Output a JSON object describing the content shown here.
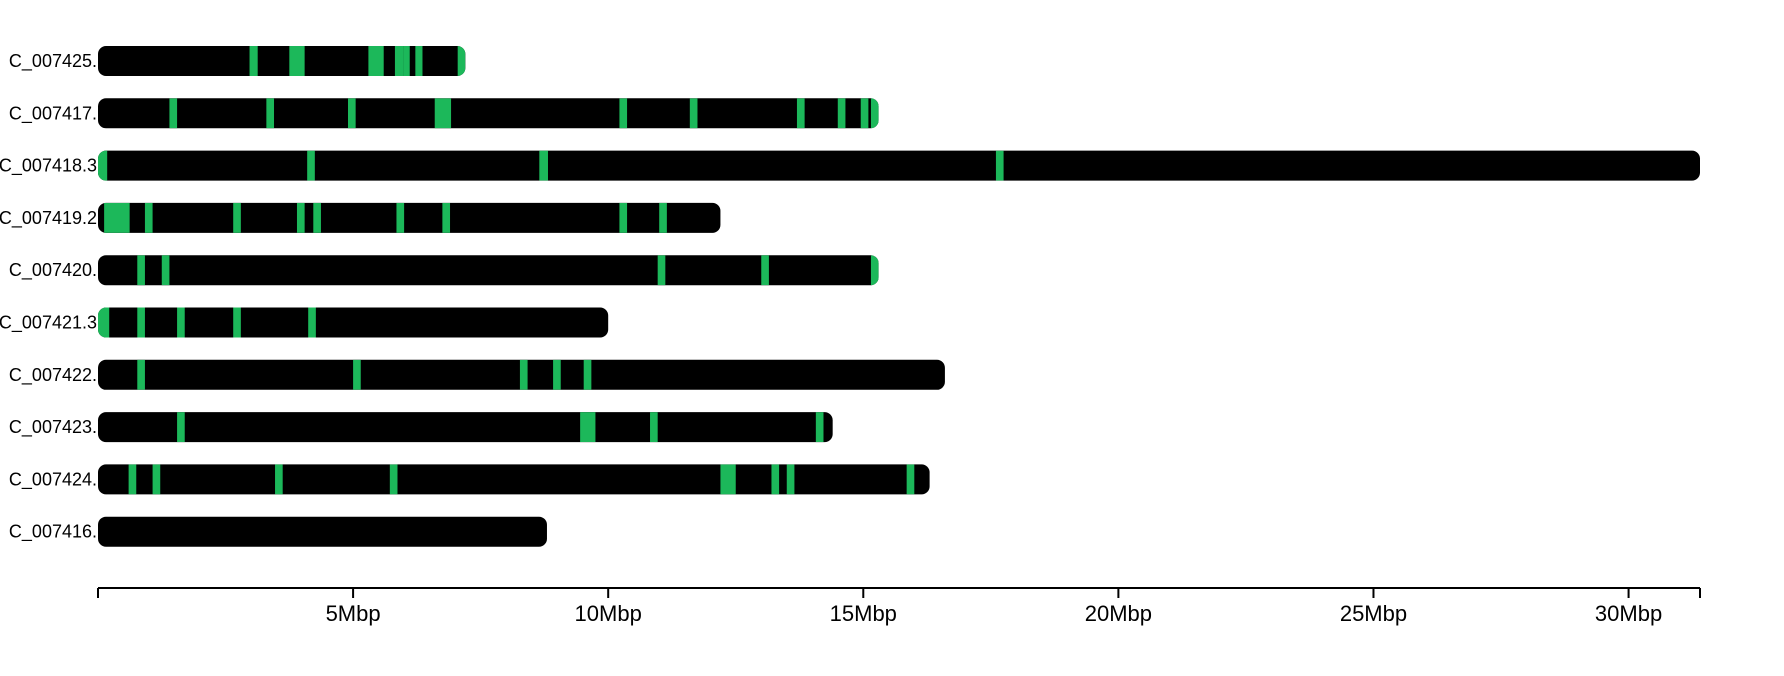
{
  "chart_data": {
    "type": "karyotype",
    "x_unit": "Mbp",
    "xlim": [
      0,
      31.4
    ],
    "x_ticks": [
      5,
      10,
      15,
      20,
      25,
      30
    ],
    "x_tick_labels": [
      "5Mbp",
      "10Mbp",
      "15Mbp",
      "20Mbp",
      "25Mbp",
      "30Mbp"
    ],
    "colors": {
      "chromosome": "#000000",
      "feature": "#1cb85a",
      "axis": "#000000"
    },
    "chromosomes": [
      {
        "label": "C_007425.",
        "length": 7.2,
        "features": [
          [
            2.97,
            3.13
          ],
          [
            3.75,
            4.05
          ],
          [
            5.3,
            5.6
          ],
          [
            5.82,
            5.98
          ],
          [
            5.98,
            6.11
          ],
          [
            6.22,
            6.36
          ],
          [
            7.05,
            7.2
          ]
        ]
      },
      {
        "label": "C_007417.",
        "length": 15.3,
        "features": [
          [
            1.4,
            1.55
          ],
          [
            3.3,
            3.45
          ],
          [
            4.9,
            5.05
          ],
          [
            6.6,
            6.92
          ],
          [
            10.22,
            10.37
          ],
          [
            11.6,
            11.75
          ],
          [
            13.7,
            13.85
          ],
          [
            14.5,
            14.65
          ],
          [
            14.95,
            15.1
          ],
          [
            15.15,
            15.3
          ]
        ]
      },
      {
        "label": "C_007418.3",
        "length": 31.4,
        "features": [
          [
            0.0,
            0.18
          ],
          [
            4.1,
            4.25
          ],
          [
            8.65,
            8.82
          ],
          [
            17.6,
            17.75
          ]
        ]
      },
      {
        "label": "C_007419.2",
        "length": 12.2,
        "features": [
          [
            0.12,
            0.62
          ],
          [
            0.92,
            1.07
          ],
          [
            2.65,
            2.8
          ],
          [
            3.9,
            4.05
          ],
          [
            4.22,
            4.37
          ],
          [
            5.85,
            6.0
          ],
          [
            6.75,
            6.9
          ],
          [
            10.22,
            10.37
          ],
          [
            11.0,
            11.15
          ]
        ]
      },
      {
        "label": "C_007420.",
        "length": 15.3,
        "features": [
          [
            0.77,
            0.92
          ],
          [
            1.25,
            1.4
          ],
          [
            10.97,
            11.12
          ],
          [
            13.0,
            13.15
          ],
          [
            15.15,
            15.3
          ]
        ]
      },
      {
        "label": "C_007421.3",
        "length": 10.0,
        "features": [
          [
            0.0,
            0.22
          ],
          [
            0.77,
            0.92
          ],
          [
            1.55,
            1.7
          ],
          [
            2.65,
            2.8
          ],
          [
            4.12,
            4.27
          ]
        ]
      },
      {
        "label": "C_007422.",
        "length": 16.6,
        "features": [
          [
            0.77,
            0.92
          ],
          [
            5.0,
            5.15
          ],
          [
            8.27,
            8.42
          ],
          [
            8.92,
            9.07
          ],
          [
            9.52,
            9.67
          ]
        ]
      },
      {
        "label": "C_007423.",
        "length": 14.4,
        "features": [
          [
            1.55,
            1.7
          ],
          [
            9.45,
            9.75
          ],
          [
            10.82,
            10.97
          ],
          [
            14.07,
            14.22
          ]
        ]
      },
      {
        "label": "C_007424.",
        "length": 16.3,
        "features": [
          [
            0.6,
            0.75
          ],
          [
            1.07,
            1.22
          ],
          [
            3.47,
            3.62
          ],
          [
            5.72,
            5.87
          ],
          [
            12.2,
            12.5
          ],
          [
            13.2,
            13.35
          ],
          [
            13.5,
            13.65
          ],
          [
            15.85,
            16.0
          ]
        ]
      },
      {
        "label": "C_007416.",
        "length": 8.8,
        "features": []
      }
    ]
  }
}
